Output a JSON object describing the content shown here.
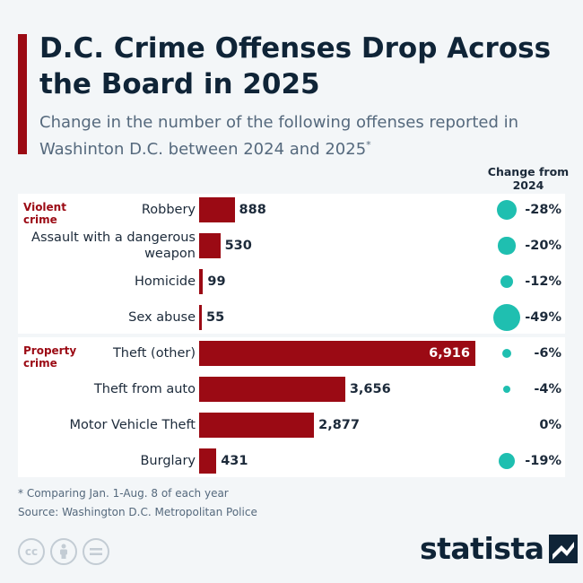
{
  "header": {
    "title": "D.C. Crime Offenses Drop Across the Board in 2025",
    "subtitle": "Change in the number of the following offenses reported in Washinton D.C. between 2024 and 2025",
    "subtitle_mark": "*",
    "change_column_header": "Change from 2024"
  },
  "chart_data": {
    "type": "bar",
    "orientation": "horizontal",
    "title": "D.C. Crime Offenses Drop Across the Board in 2025",
    "groups": [
      {
        "name": "Violent crime",
        "categories": [
          "Robbery",
          "Assault with a dangerous weapon",
          "Homicide",
          "Sex abuse"
        ],
        "values": [
          888,
          530,
          99,
          55
        ],
        "value_labels": [
          "888",
          "530",
          "99",
          "55"
        ],
        "change_pct": [
          -28,
          -20,
          -12,
          -49
        ],
        "change_labels": [
          "-28%",
          "-20%",
          "-12%",
          "-49%"
        ]
      },
      {
        "name": "Property crime",
        "categories": [
          "Theft (other)",
          "Theft from auto",
          "Motor Vehicle Theft",
          "Burglary"
        ],
        "values": [
          6916,
          3656,
          2877,
          431
        ],
        "value_labels": [
          "6,916",
          "3,656",
          "2,877",
          "431"
        ],
        "change_pct": [
          -6,
          -4,
          0,
          -19
        ],
        "change_labels": [
          "-6%",
          "-4%",
          "0%",
          "-19%"
        ]
      }
    ],
    "colors": {
      "bar": "#9b0a14",
      "bubble": "#1fbfb0",
      "group_label": "#9b0a14"
    }
  },
  "footer": {
    "note": "* Comparing Jan. 1-Aug. 8 of each year",
    "source": "Source: Washington D.C. Metropolitan Police",
    "license_icons": [
      "cc-icon",
      "attribution-icon",
      "no-derivatives-icon"
    ],
    "brand": "statista"
  }
}
